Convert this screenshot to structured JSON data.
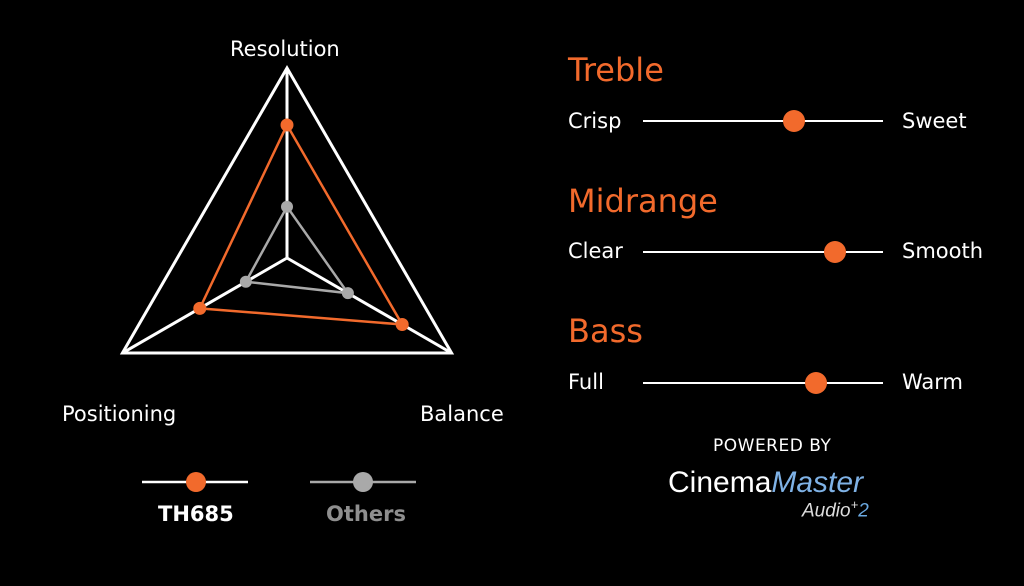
{
  "colors": {
    "accent": "#f26a2c",
    "others": "#a9a9a9",
    "frame": "#ffffff",
    "background": "#000000"
  },
  "chart_data": {
    "type": "radar",
    "axes": [
      "Resolution",
      "Balance",
      "Positioning"
    ],
    "range": [
      0,
      1
    ],
    "series": [
      {
        "name": "TH685",
        "values": [
          0.7,
          0.7,
          0.53
        ]
      },
      {
        "name": "Others",
        "values": [
          0.27,
          0.37,
          0.25
        ]
      }
    ],
    "legend": "bottom"
  },
  "sliders": [
    {
      "title": "Treble",
      "left": "Crisp",
      "right": "Sweet",
      "value": 0.63
    },
    {
      "title": "Midrange",
      "left": "Clear",
      "right": "Smooth",
      "value": 0.8
    },
    {
      "title": "Bass",
      "left": "Full",
      "right": "Warm",
      "value": 0.72
    }
  ],
  "branding": {
    "powered_by": "POWERED BY",
    "brand_cinema": "Cinema",
    "brand_master": "Master",
    "brand_audio": "Audio",
    "brand_plus": "+",
    "brand_version": "2"
  }
}
